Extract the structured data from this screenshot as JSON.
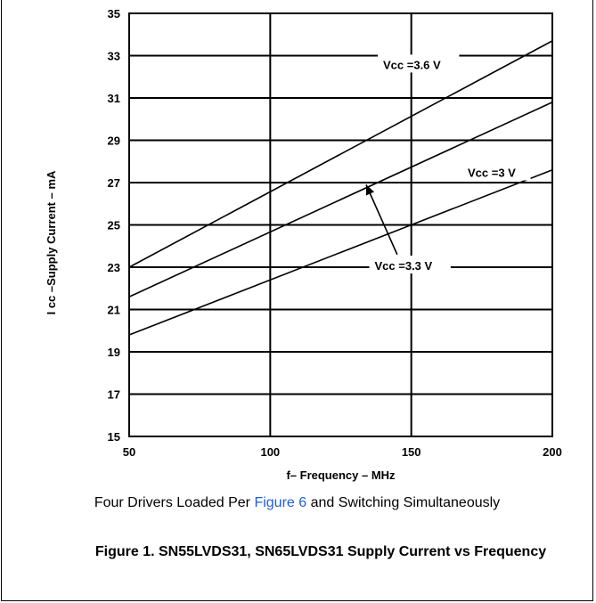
{
  "chart_data": {
    "type": "line",
    "xlabel": "f– Frequency – MHz",
    "ylabel": "I cc  –Supply Current – mA",
    "xlim": [
      50,
      200
    ],
    "ylim": [
      15,
      35
    ],
    "xticks": [
      "50",
      "100",
      "150",
      "200"
    ],
    "yticks": [
      "15",
      "17",
      "19",
      "21",
      "23",
      "25",
      "27",
      "29",
      "31",
      "33",
      "35"
    ],
    "x_values": [
      50,
      100,
      150,
      200
    ],
    "ygrid_values": [
      15,
      17,
      19,
      21,
      23,
      25,
      27,
      29,
      31,
      33,
      35
    ],
    "grid": true,
    "series": [
      {
        "name": "Vcc =3.6 V",
        "x": [
          50,
          200
        ],
        "y": [
          23.0,
          33.7
        ]
      },
      {
        "name": "Vcc =3.3 V",
        "x": [
          50,
          200
        ],
        "y": [
          21.6,
          30.8
        ]
      },
      {
        "name": "Vcc =3 V",
        "x": [
          50,
          200
        ],
        "y": [
          19.8,
          27.6
        ]
      }
    ],
    "annotations": [
      {
        "text": "Vcc  =3.6 V",
        "x": 140,
        "y": 32.5
      },
      {
        "text": "Vcc  =3 V",
        "x": 170,
        "y": 27.4
      },
      {
        "text": "Vcc  =3.3 V",
        "x": 137,
        "y": 23.0
      }
    ]
  },
  "conditions": {
    "before": "Four Drivers Loaded Per ",
    "link": "Figure 6",
    "after": " and Switching Simultaneously"
  },
  "caption": "Figure 1. SN55LVDS31, SN65LVDS31 Supply Current vs Frequency"
}
